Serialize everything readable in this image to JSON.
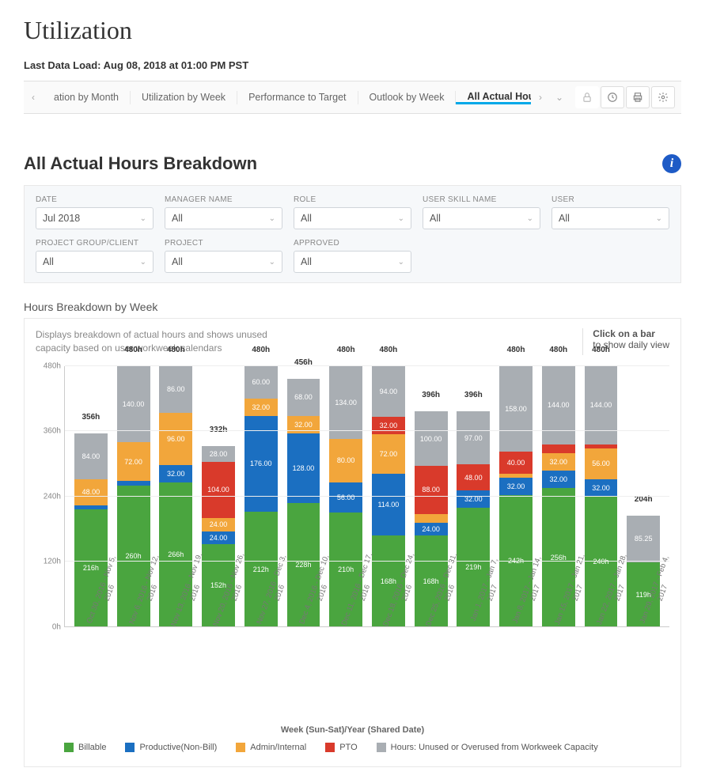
{
  "page_title": "Utilization",
  "last_load": "Last Data Load: Aug 08, 2018 at 01:00 PM PST",
  "tabs": [
    {
      "label": "ation by Month",
      "active": false
    },
    {
      "label": "Utilization by Week",
      "active": false
    },
    {
      "label": "Performance to Target",
      "active": false
    },
    {
      "label": "Outlook by Week",
      "active": false
    },
    {
      "label": "All Actual Hours Breakdown",
      "active": true
    }
  ],
  "section_title": "All Actual Hours Breakdown",
  "filters": [
    {
      "label": "DATE",
      "value": "Jul 2018"
    },
    {
      "label": "MANAGER NAME",
      "value": "All"
    },
    {
      "label": "ROLE",
      "value": "All"
    },
    {
      "label": "USER SKILL NAME",
      "value": "All"
    },
    {
      "label": "USER",
      "value": "All"
    },
    {
      "label": "PROJECT GROUP/CLIENT",
      "value": "All"
    },
    {
      "label": "PROJECT",
      "value": "All"
    },
    {
      "label": "APPROVED",
      "value": "All"
    }
  ],
  "chart": {
    "title": "Hours Breakdown by Week",
    "description": "Displays breakdown of actual hours and shows unused capacity based on user workweek calendars",
    "hint_bold": "Click on a bar",
    "hint_rest": "to show daily view",
    "x_title": "Week (Sun-Sat)/Year (Shared Date)",
    "ymax": 480,
    "yticks": [
      0,
      120,
      240,
      360,
      480
    ],
    "ytick_labels": [
      "0h",
      "120h",
      "240h",
      "360h",
      "480h"
    ],
    "colors": {
      "billable": "#4aa53f",
      "productive": "#1b6fc1",
      "admin": "#f2a63b",
      "pto": "#d93a2b",
      "unused": "#a9aeb3"
    },
    "legend": [
      {
        "key": "billable",
        "label": "Billable"
      },
      {
        "key": "productive",
        "label": "Productive(Non-Bill)"
      },
      {
        "key": "admin",
        "label": "Admin/Internal"
      },
      {
        "key": "pto",
        "label": "PTO"
      },
      {
        "key": "unused",
        "label": "Hours: Unused or Overused from Workweek Capacity"
      }
    ],
    "weeks": [
      {
        "label": "Oct 30, 2016 - Nov 5, 2016",
        "total": "356h",
        "segs": [
          {
            "k": "billable",
            "v": 216,
            "t": "216h"
          },
          {
            "k": "productive",
            "v": 8,
            "t": "8.00"
          },
          {
            "k": "admin",
            "v": 48,
            "t": "48.00"
          },
          {
            "k": "unused",
            "v": 84,
            "t": "84.00"
          }
        ]
      },
      {
        "label": "Nov 6, 2016 - Nov 12, 2016",
        "total": "480h",
        "segs": [
          {
            "k": "billable",
            "v": 260,
            "t": "260h"
          },
          {
            "k": "productive",
            "v": 8,
            "t": "8.00"
          },
          {
            "k": "admin",
            "v": 72,
            "t": "72.00"
          },
          {
            "k": "unused",
            "v": 140,
            "t": "140.00"
          }
        ]
      },
      {
        "label": "Nov 13, 2016 - Nov 19, 2016",
        "total": "480h",
        "segs": [
          {
            "k": "billable",
            "v": 266,
            "t": "266h"
          },
          {
            "k": "productive",
            "v": 32,
            "t": "32.00"
          },
          {
            "k": "admin",
            "v": 96,
            "t": "96.00"
          },
          {
            "k": "unused",
            "v": 86,
            "t": "86.00"
          }
        ]
      },
      {
        "label": "Nov 20, 2016 - Nov 26, 2016",
        "total": "332h",
        "segs": [
          {
            "k": "billable",
            "v": 152,
            "t": "152h"
          },
          {
            "k": "productive",
            "v": 24,
            "t": "24.00"
          },
          {
            "k": "admin",
            "v": 24,
            "t": "24.00"
          },
          {
            "k": "pto",
            "v": 104,
            "t": "104.00"
          },
          {
            "k": "unused",
            "v": 28,
            "t": "28.00"
          }
        ]
      },
      {
        "label": "Nov 27, 2016 - Dec 3, 2016",
        "total": "480h",
        "segs": [
          {
            "k": "billable",
            "v": 212,
            "t": "212h"
          },
          {
            "k": "productive",
            "v": 176,
            "t": "176.00"
          },
          {
            "k": "admin",
            "v": 32,
            "t": "32.00"
          },
          {
            "k": "unused",
            "v": 60,
            "t": "60.00"
          }
        ]
      },
      {
        "label": "Dec 4, 2016 - Dec 10, 2016",
        "total": "456h",
        "segs": [
          {
            "k": "billable",
            "v": 228,
            "t": "228h"
          },
          {
            "k": "productive",
            "v": 128,
            "t": "128.00"
          },
          {
            "k": "admin",
            "v": 32,
            "t": "32.00"
          },
          {
            "k": "unused",
            "v": 68,
            "t": "68.00"
          }
        ]
      },
      {
        "label": "Dec 11, 2016 - Dec 17, 2016",
        "total": "480h",
        "segs": [
          {
            "k": "billable",
            "v": 210,
            "t": "210h"
          },
          {
            "k": "productive",
            "v": 56,
            "t": "56.00"
          },
          {
            "k": "admin",
            "v": 80,
            "t": "80.00"
          },
          {
            "k": "unused",
            "v": 134,
            "t": "134.00"
          }
        ]
      },
      {
        "label": "Dec 18, 2016 - Dec 24, 2016",
        "total": "480h",
        "segs": [
          {
            "k": "billable",
            "v": 168,
            "t": "168h"
          },
          {
            "k": "productive",
            "v": 114,
            "t": "114.00"
          },
          {
            "k": "admin",
            "v": 72,
            "t": "72.00"
          },
          {
            "k": "pto",
            "v": 32,
            "t": "32.00"
          },
          {
            "k": "unused",
            "v": 94,
            "t": "94.00"
          }
        ]
      },
      {
        "label": "Dec 25, 2016 - Dec 31, 2016",
        "total": "396h",
        "segs": [
          {
            "k": "billable",
            "v": 168,
            "t": "168h"
          },
          {
            "k": "productive",
            "v": 24,
            "t": "24.00"
          },
          {
            "k": "admin",
            "v": 16,
            "t": "16.00"
          },
          {
            "k": "pto",
            "v": 88,
            "t": "88.00"
          },
          {
            "k": "unused",
            "v": 100,
            "t": "100.00"
          }
        ]
      },
      {
        "label": "Jan 1, 2017 - Jan 7, 2017",
        "total": "396h",
        "segs": [
          {
            "k": "billable",
            "v": 219,
            "t": "219h"
          },
          {
            "k": "productive",
            "v": 32,
            "t": "32.00"
          },
          {
            "k": "pto",
            "v": 48,
            "t": "48.00"
          },
          {
            "k": "unused",
            "v": 97,
            "t": "97.00"
          }
        ]
      },
      {
        "label": "Jan 8, 2017 - Jan 14, 2017",
        "total": "480h",
        "segs": [
          {
            "k": "billable",
            "v": 242,
            "t": "242h"
          },
          {
            "k": "productive",
            "v": 32,
            "t": "32.00"
          },
          {
            "k": "admin",
            "v": 8,
            "t": "8.00"
          },
          {
            "k": "pto",
            "v": 40,
            "t": "40.00"
          },
          {
            "k": "unused",
            "v": 158,
            "t": "158.00"
          }
        ]
      },
      {
        "label": "Jan 15, 2017 - Jan 21, 2017",
        "total": "480h",
        "segs": [
          {
            "k": "billable",
            "v": 256,
            "t": "256h"
          },
          {
            "k": "productive",
            "v": 32,
            "t": "32.00"
          },
          {
            "k": "admin",
            "v": 32,
            "t": "32.00"
          },
          {
            "k": "pto",
            "v": 16,
            "t": "16.00"
          },
          {
            "k": "unused",
            "v": 144,
            "t": "144.00"
          }
        ]
      },
      {
        "label": "Jan 22, 2017 - Jan 28, 2017",
        "total": "480h",
        "segs": [
          {
            "k": "billable",
            "v": 240,
            "t": "240h"
          },
          {
            "k": "productive",
            "v": 32,
            "t": "32.00"
          },
          {
            "k": "admin",
            "v": 56,
            "t": "56.00"
          },
          {
            "k": "pto",
            "v": 8,
            "t": "8.00"
          },
          {
            "k": "unused",
            "v": 144,
            "t": "144.00"
          }
        ]
      },
      {
        "label": "Jan 29, 2017 - Feb 4, 2017",
        "total": "204h",
        "segs": [
          {
            "k": "billable",
            "v": 119,
            "t": "119h"
          },
          {
            "k": "unused",
            "v": 85.25,
            "t": "85.25"
          }
        ]
      }
    ]
  }
}
